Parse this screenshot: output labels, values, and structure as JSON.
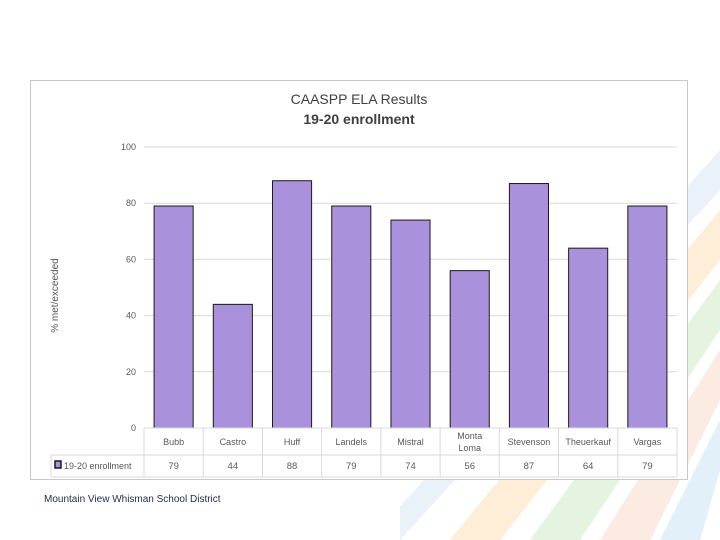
{
  "chart_data": {
    "type": "bar",
    "title": "CAASPP ELA Results",
    "subtitle": "19-20 enrollment",
    "ylabel": "% met/exceeded",
    "xlabel": "",
    "ylim": [
      0,
      100
    ],
    "yticks": [
      0,
      20,
      40,
      60,
      80,
      100
    ],
    "grid": true,
    "categories": [
      "Bubb",
      "Castro",
      "Huff",
      "Landels",
      "Mistral",
      "Monta Loma",
      "Stevenson",
      "Theuerkauf",
      "Vargas"
    ],
    "series": [
      {
        "name": "19-20 enrollment",
        "values": [
          79,
          44,
          88,
          79,
          74,
          56,
          87,
          64,
          79
        ]
      }
    ],
    "data_table": true
  },
  "colors": {
    "bar": "#a991dc",
    "bar_edge": "#1a1a1a",
    "grid": "#d9d9d9",
    "text": "#595959"
  },
  "footer": {
    "text": "Mountain View Whisman School District"
  }
}
